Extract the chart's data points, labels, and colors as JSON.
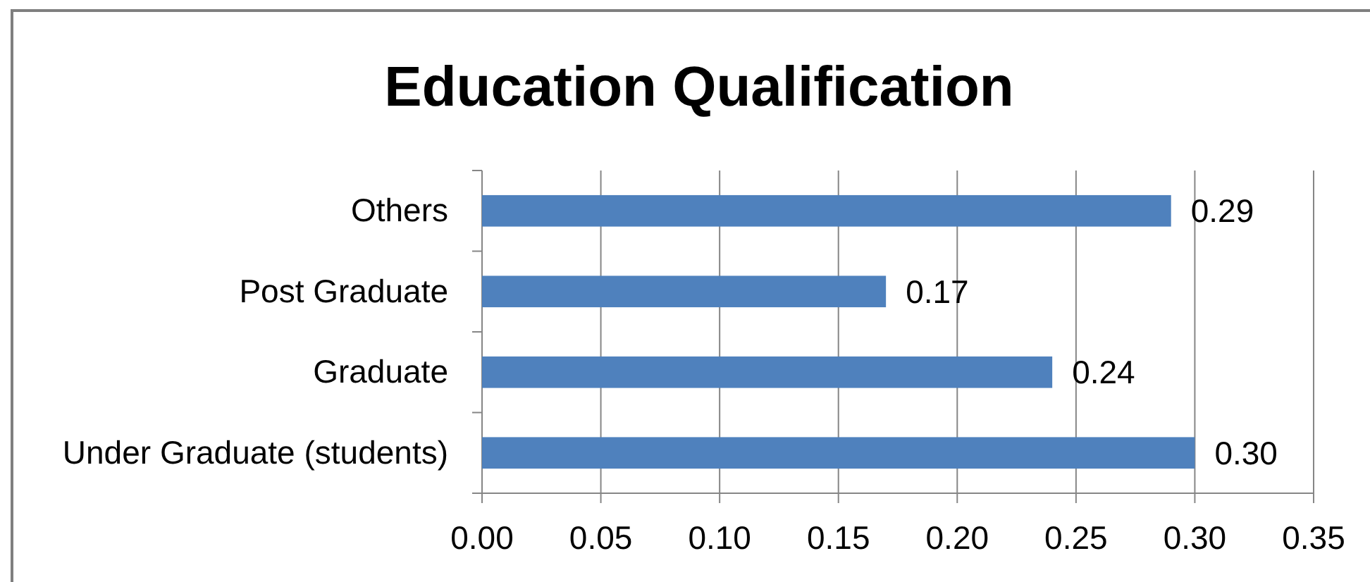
{
  "chart_data": {
    "type": "bar",
    "title": "Education Qualification",
    "orientation": "horizontal",
    "categories": [
      "Others",
      "Post Graduate",
      "Graduate",
      "Under Graduate (students)"
    ],
    "values": [
      0.29,
      0.17,
      0.24,
      0.3
    ],
    "color": "#4f81bd",
    "value_labels": [
      "0.29",
      "0.17",
      "0.24",
      "0.30"
    ],
    "xlim": [
      0,
      0.35
    ],
    "xticks": [
      {
        "value": 0,
        "label": "0.00"
      },
      {
        "value": 0.05,
        "label": "0.05"
      },
      {
        "value": 0.1,
        "label": "0.10"
      },
      {
        "value": 0.15,
        "label": "0.15"
      },
      {
        "value": 0.2,
        "label": "0.20"
      },
      {
        "value": 0.25,
        "label": "0.25"
      },
      {
        "value": 0.3,
        "label": "0.30"
      },
      {
        "value": 0.35,
        "label": "0.35"
      }
    ],
    "grid": "x"
  }
}
